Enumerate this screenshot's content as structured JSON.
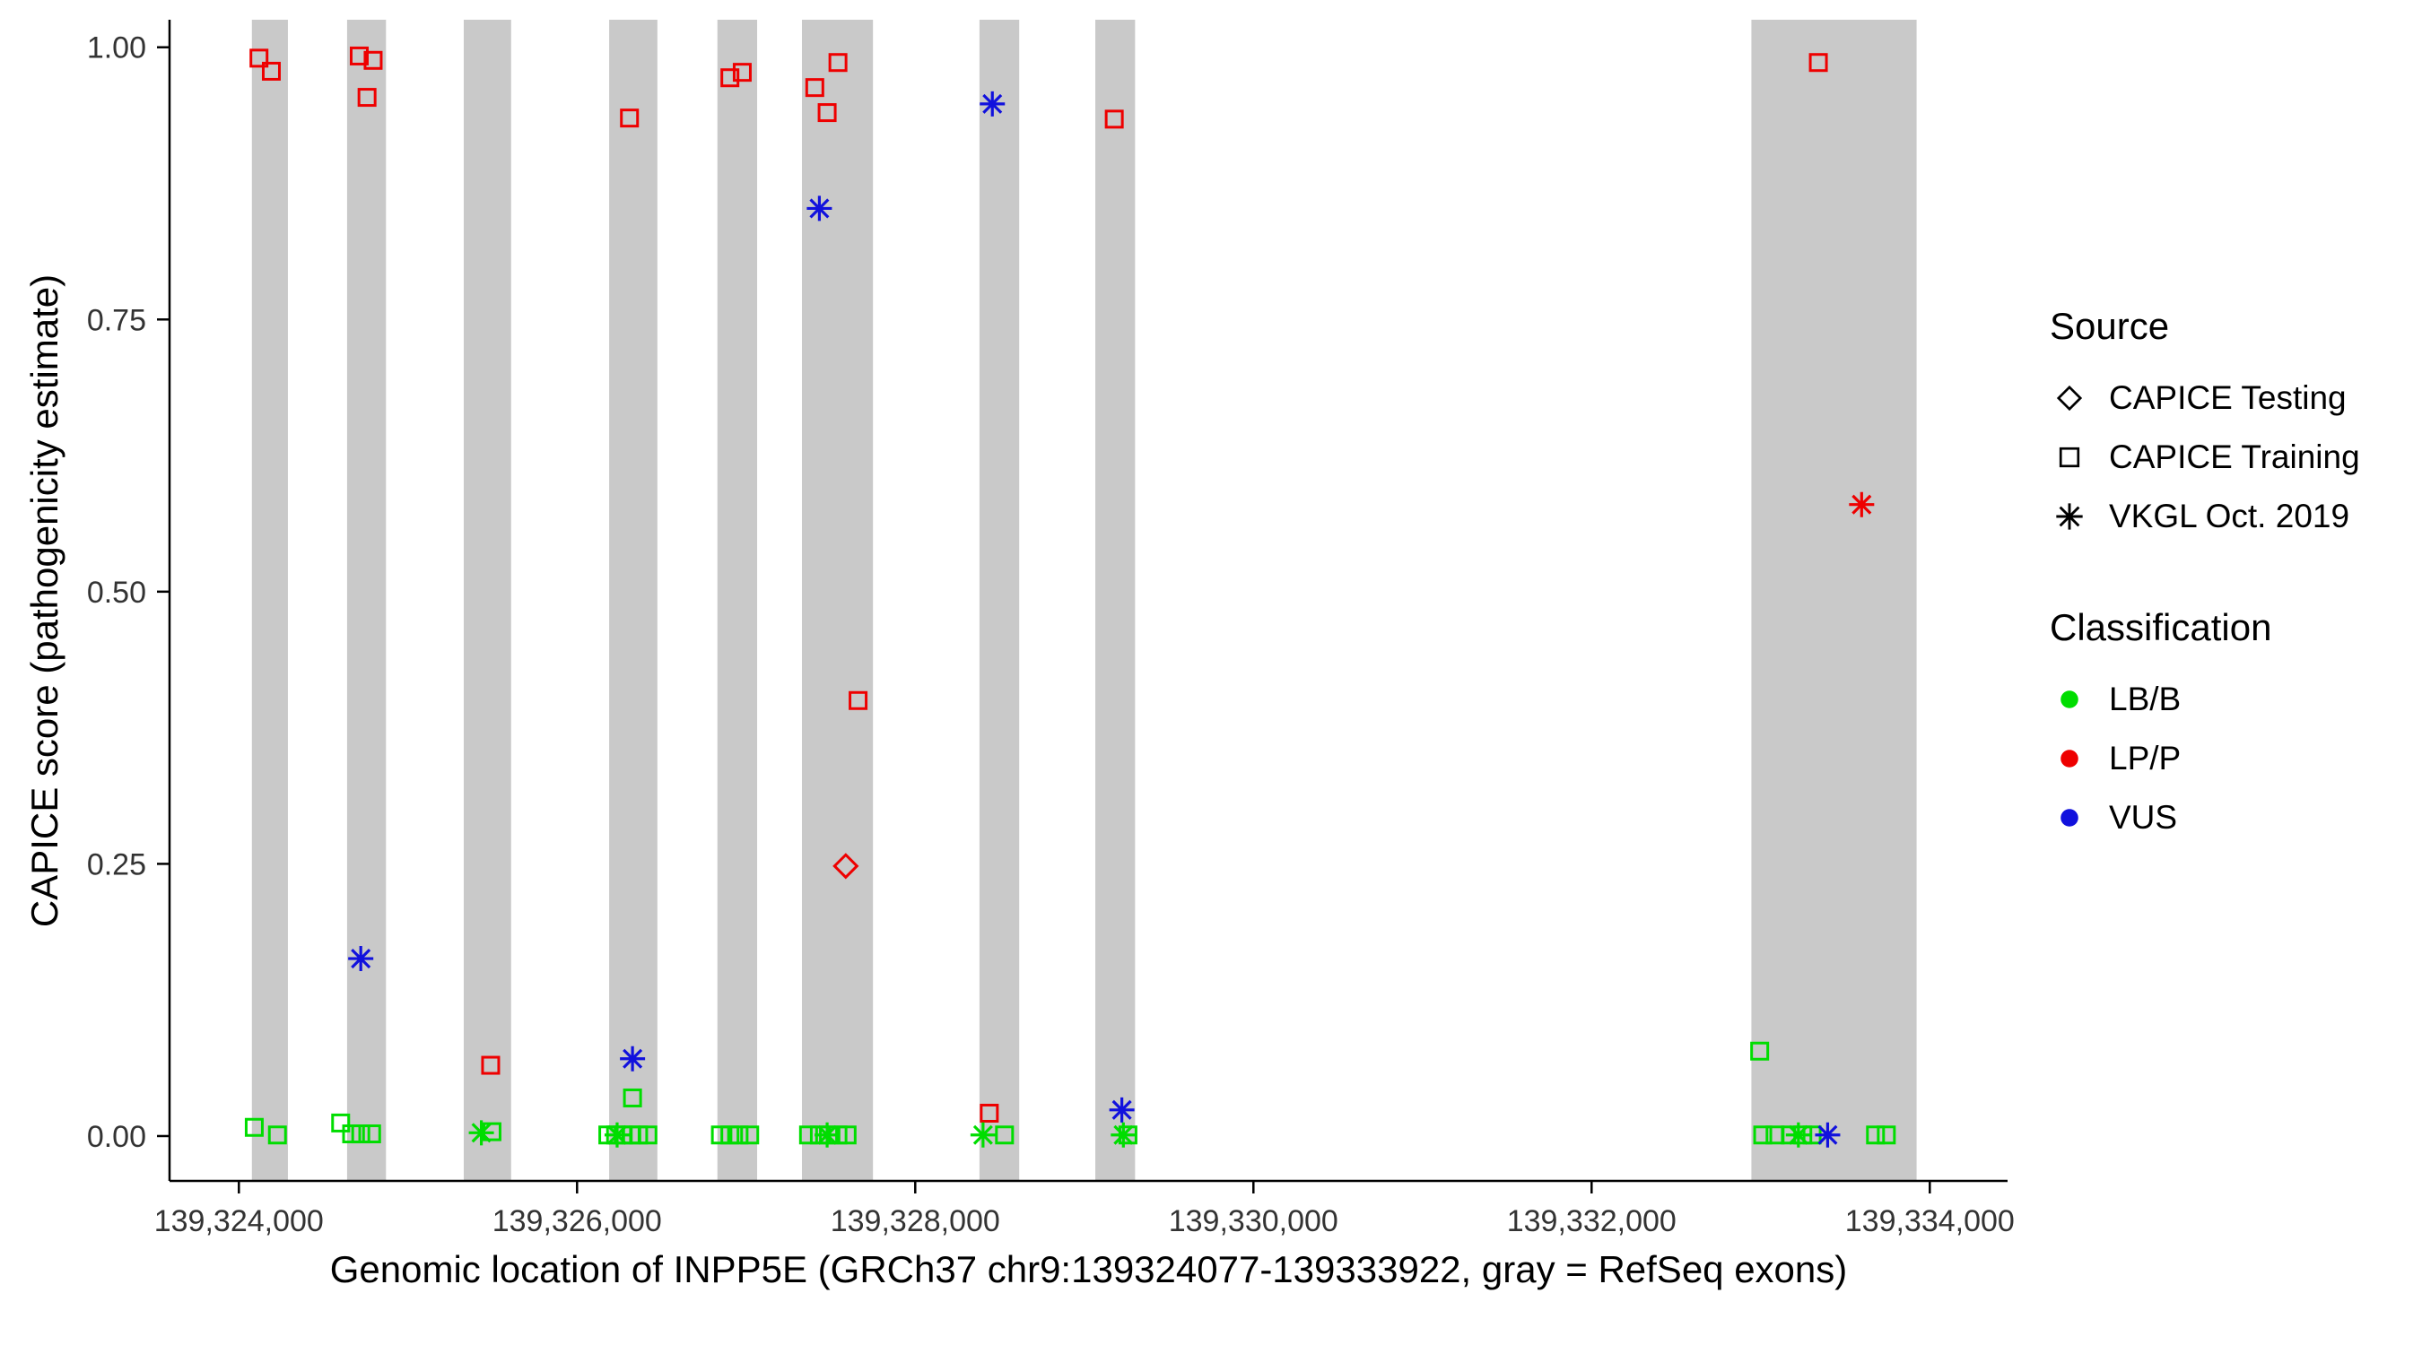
{
  "figure_title": "",
  "axes": {
    "x_label": "Genomic location of INPP5E (GRCh37 chr9:139324077-139333922, gray = RefSeq exons)",
    "y_label": "CAPICE score (pathogenicity estimate)",
    "x_ticks": [
      139324000,
      139326000,
      139328000,
      139330000,
      139332000,
      139334000
    ],
    "x_tick_labels": [
      "139,324,000",
      "139,326,000",
      "139,328,000",
      "139,330,000",
      "139,332,000",
      "139,334,000"
    ],
    "y_ticks": [
      0,
      0.25,
      0.5,
      0.75,
      1
    ],
    "y_tick_labels": [
      "0.00",
      "0.25",
      "0.50",
      "0.75",
      "1.00"
    ],
    "x_domain": [
      139323590,
      139334460
    ],
    "y_domain": [
      -0.0412,
      1.0253
    ],
    "grid": "off"
  },
  "colors": {
    "exon": "#C9C9C9",
    "lbb": "#00DD00",
    "lpp": "#EE0000",
    "vus": "#1111DD",
    "axis": "#000000",
    "tick_text": "#333333"
  },
  "legend": {
    "position": "right",
    "source": {
      "title": "Source",
      "items": [
        {
          "label": "CAPICE Testing",
          "shape": "diamond"
        },
        {
          "label": "CAPICE Training",
          "shape": "square"
        },
        {
          "label": "VKGL Oct. 2019",
          "shape": "asterisk"
        }
      ]
    },
    "classification": {
      "title": "Classification",
      "items": [
        {
          "label": "LB/B",
          "color": "#00DD00"
        },
        {
          "label": "LP/P",
          "color": "#EE0000"
        },
        {
          "label": "VUS",
          "color": "#1111DD"
        }
      ]
    }
  },
  "chart_data": {
    "type": "scatter",
    "title": "",
    "xlabel": "Genomic location of INPP5E (GRCh37 chr9:139324077-139333922, gray = RefSeq exons)",
    "ylabel": "CAPICE score (pathogenicity estimate)",
    "xlim": [
      139323590,
      139334460
    ],
    "ylim": [
      -0.0412,
      1.0253
    ],
    "gene": "INPP5E",
    "gene_region": "GRCh37 chr9:139324077-139333922",
    "exons_note": "gray vertical bands = RefSeq exons, full panel height",
    "exons": [
      [
        139324077,
        139324290
      ],
      [
        139324640,
        139324870
      ],
      [
        139325330,
        139325610
      ],
      [
        139326190,
        139326475
      ],
      [
        139326830,
        139327065
      ],
      [
        139327330,
        139327750
      ],
      [
        139328380,
        139328615
      ],
      [
        139329065,
        139329300
      ],
      [
        139332945,
        139333922
      ]
    ],
    "series": [
      {
        "id": "training-lpp",
        "source": "CAPICE Training",
        "classification": "LP/P",
        "shape": "square",
        "color_key": "lpp",
        "points": [
          [
            139324119,
            0.99
          ],
          [
            139324192,
            0.978
          ],
          [
            139324712,
            0.992
          ],
          [
            139324794,
            0.988
          ],
          [
            139324758,
            0.954
          ],
          [
            139325489,
            0.065
          ],
          [
            139326310,
            0.935
          ],
          [
            139326904,
            0.972
          ],
          [
            139326977,
            0.977
          ],
          [
            139327406,
            0.963
          ],
          [
            139327543,
            0.986
          ],
          [
            139327479,
            0.94
          ],
          [
            139327662,
            0.4
          ],
          [
            139328438,
            0.021
          ],
          [
            139329177,
            0.934
          ],
          [
            139333341,
            0.986
          ]
        ]
      },
      {
        "id": "training-lbb",
        "source": "CAPICE Training",
        "classification": "LB/B",
        "shape": "square",
        "color_key": "lbb",
        "points": [
          [
            139324091,
            0.008
          ],
          [
            139324228,
            0.001
          ],
          [
            139324602,
            0.012
          ],
          [
            139324667,
            0.002
          ],
          [
            139324721,
            0.002
          ],
          [
            139324785,
            0.002
          ],
          [
            139325497,
            0.004
          ],
          [
            139326182,
            0.001
          ],
          [
            139326228,
            0.001
          ],
          [
            139326273,
            0.001
          ],
          [
            139326319,
            0.001
          ],
          [
            139326364,
            0.001
          ],
          [
            139326419,
            0.001
          ],
          [
            139326328,
            0.035
          ],
          [
            139326848,
            0.001
          ],
          [
            139326904,
            0.001
          ],
          [
            139326958,
            0.001
          ],
          [
            139327021,
            0.001
          ],
          [
            139327369,
            0.001
          ],
          [
            139327433,
            0.001
          ],
          [
            139327487,
            0.001
          ],
          [
            139327543,
            0.001
          ],
          [
            139327597,
            0.001
          ],
          [
            139328528,
            0.001
          ],
          [
            139329258,
            0.001
          ],
          [
            139332994,
            0.078
          ],
          [
            139333012,
            0.001
          ],
          [
            139333085,
            0.001
          ],
          [
            139333176,
            0.001
          ],
          [
            139333249,
            0.001
          ],
          [
            139333304,
            0.001
          ],
          [
            139333679,
            0.001
          ],
          [
            139333743,
            0.001
          ]
        ]
      },
      {
        "id": "testing-lpp",
        "source": "CAPICE Testing",
        "classification": "LP/P",
        "shape": "diamond",
        "color_key": "lpp",
        "points": [
          [
            139327589,
            0.248
          ]
        ]
      },
      {
        "id": "vkgl-vus",
        "source": "VKGL Oct. 2019",
        "classification": "VUS",
        "shape": "asterisk",
        "color_key": "vus",
        "points": [
          [
            139324721,
            0.163
          ],
          [
            139326328,
            0.071
          ],
          [
            139327433,
            0.852
          ],
          [
            139328456,
            0.948
          ],
          [
            139329222,
            0.024
          ],
          [
            139333396,
            0.001
          ]
        ]
      },
      {
        "id": "vkgl-lbb",
        "source": "VKGL Oct. 2019",
        "classification": "LB/B",
        "shape": "asterisk",
        "color_key": "lbb",
        "points": [
          [
            139325434,
            0.003
          ],
          [
            139326237,
            0.001
          ],
          [
            139327479,
            0.001
          ],
          [
            139328401,
            0.001
          ],
          [
            139329231,
            0.001
          ],
          [
            139333223,
            0.001
          ]
        ]
      },
      {
        "id": "vkgl-lpp",
        "source": "VKGL Oct. 2019",
        "classification": "LP/P",
        "shape": "asterisk",
        "color_key": "lpp",
        "points": [
          [
            139333597,
            0.58
          ]
        ]
      }
    ]
  }
}
